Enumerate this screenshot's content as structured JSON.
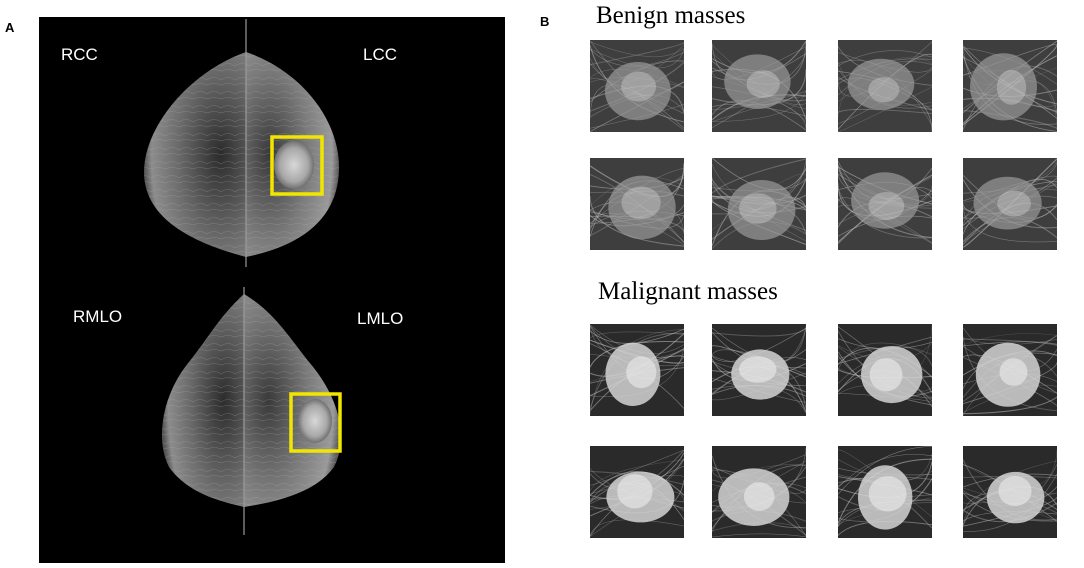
{
  "panel_a": {
    "letter": "A",
    "labels": {
      "rcc": "RCC",
      "lcc": "LCC",
      "rmlo": "RMLO",
      "lmlo": "LMLO"
    },
    "highlight_color": "#f2e600"
  },
  "panel_b": {
    "letter": "B",
    "benign": {
      "title": "Benign masses",
      "count": 8
    },
    "malignant": {
      "title": "Malignant masses",
      "count": 8
    }
  }
}
